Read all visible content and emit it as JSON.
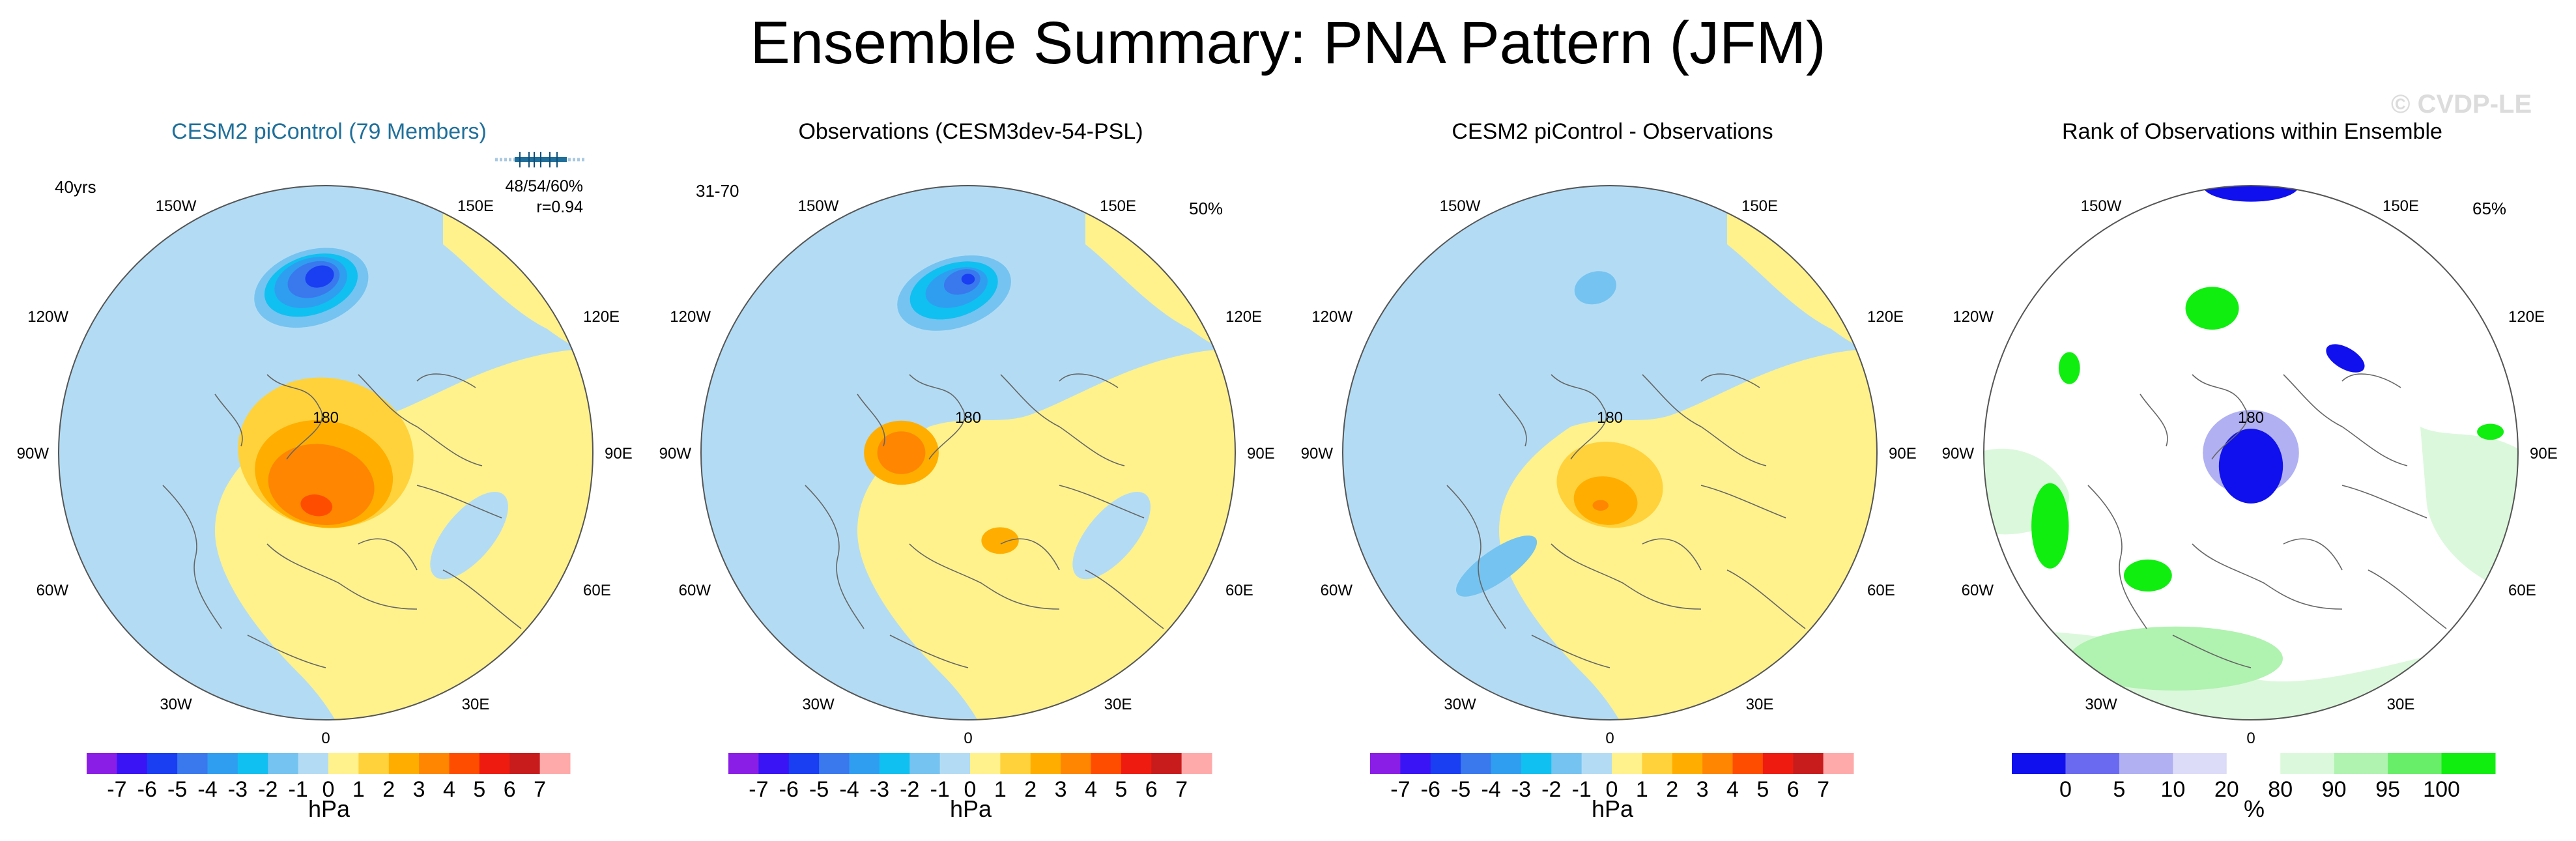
{
  "title": "Ensemble Summary: PNA Pattern (JFM)",
  "watermark": "© CVDP-LE",
  "chart_data": [
    {
      "type": "heatmap",
      "title": "CESM2 piControl (79 Members)",
      "projection": "north-polar-stereographic",
      "left_annotation": "40yrs",
      "stats_line1": "48/54/60%",
      "stats_line2": "r=0.94",
      "right_annotation": "",
      "units": "hPa",
      "fields": [
        {
          "kind": "ellipse",
          "lon": 175,
          "colat": 0.62,
          "r1": 0.27,
          "r2": 0.17,
          "rot": -18,
          "value": -1
        },
        {
          "kind": "ellipse",
          "lon": 175,
          "colat": 0.62,
          "r1": 0.22,
          "r2": 0.14,
          "rot": -18,
          "value": -2
        },
        {
          "kind": "ellipse",
          "lon": 175,
          "colat": 0.63,
          "r1": 0.18,
          "r2": 0.11,
          "rot": -18,
          "value": -3
        },
        {
          "kind": "ellipse",
          "lon": 175,
          "colat": 0.64,
          "r1": 0.14,
          "r2": 0.09,
          "rot": -18,
          "value": -4
        },
        {
          "kind": "ellipse",
          "lon": 176,
          "colat": 0.65,
          "r1": 0.1,
          "r2": 0.065,
          "rot": -18,
          "value": -5
        },
        {
          "kind": "ellipse",
          "lon": 178,
          "colat": 0.66,
          "r1": 0.055,
          "r2": 0.04,
          "rot": -18,
          "value": -6
        },
        {
          "kind": "ellipse",
          "lon": 0,
          "colat": 0.0,
          "r1": 0.33,
          "r2": 0.28,
          "rot": 10,
          "value": 1
        },
        {
          "kind": "ellipse",
          "lon": 5,
          "colat": 0.08,
          "r1": 0.26,
          "r2": 0.2,
          "rot": 10,
          "value": 2
        },
        {
          "kind": "ellipse",
          "lon": 8,
          "colat": 0.12,
          "r1": 0.2,
          "r2": 0.15,
          "rot": 10,
          "value": 3
        },
        {
          "kind": "ellipse",
          "lon": 10,
          "colat": 0.2,
          "r1": 0.06,
          "r2": 0.04,
          "rot": 10,
          "value": 4
        },
        {
          "kind": "ellipse",
          "lon": 50,
          "colat": 0.78,
          "r1": 0.2,
          "r2": 0.09,
          "rot": 30,
          "value": -1
        },
        {
          "kind": "ellipse",
          "lon": 300,
          "colat": 0.62,
          "r1": 0.2,
          "r2": 0.09,
          "rot": -50,
          "value": -1
        }
      ]
    },
    {
      "type": "heatmap",
      "title": "Observations (CESM3dev-54-PSL)",
      "projection": "north-polar-stereographic",
      "left_annotation": "31-70",
      "right_annotation": "50%",
      "units": "hPa",
      "fields": [
        {
          "kind": "ellipse",
          "lon": 175,
          "colat": 0.6,
          "r1": 0.27,
          "r2": 0.17,
          "rot": -18,
          "value": -1
        },
        {
          "kind": "ellipse",
          "lon": 175,
          "colat": 0.6,
          "r1": 0.22,
          "r2": 0.13,
          "rot": -18,
          "value": -2
        },
        {
          "kind": "ellipse",
          "lon": 175,
          "colat": 0.61,
          "r1": 0.17,
          "r2": 0.1,
          "rot": -18,
          "value": -3
        },
        {
          "kind": "ellipse",
          "lon": 176,
          "colat": 0.62,
          "r1": 0.12,
          "r2": 0.07,
          "rot": -18,
          "value": -4
        },
        {
          "kind": "ellipse",
          "lon": 178,
          "colat": 0.64,
          "r1": 0.07,
          "r2": 0.045,
          "rot": -18,
          "value": -5
        },
        {
          "kind": "ellipse",
          "lon": 180,
          "colat": 0.65,
          "r1": 0.025,
          "r2": 0.02,
          "rot": 0,
          "value": -6
        },
        {
          "kind": "ellipse",
          "lon": 90,
          "colat": 0.25,
          "r1": 0.14,
          "r2": 0.12,
          "rot": 0,
          "value": 2
        },
        {
          "kind": "ellipse",
          "lon": 90,
          "colat": 0.25,
          "r1": 0.09,
          "r2": 0.08,
          "rot": 0,
          "value": 3
        },
        {
          "kind": "ellipse",
          "lon": 340,
          "colat": 0.35,
          "r1": 0.07,
          "r2": 0.05,
          "rot": 0,
          "value": 2
        },
        {
          "kind": "ellipse",
          "lon": 300,
          "colat": 0.62,
          "r1": 0.2,
          "r2": 0.09,
          "rot": -50,
          "value": -1
        }
      ]
    },
    {
      "type": "heatmap",
      "title": "CESM2 piControl - Observations",
      "projection": "north-polar-stereographic",
      "left_annotation": "",
      "right_annotation": "",
      "units": "hPa",
      "fields": [
        {
          "kind": "ellipse",
          "lon": 175,
          "colat": 0.6,
          "r1": 0.18,
          "r2": 0.14,
          "rot": -18,
          "value": -1
        },
        {
          "kind": "ellipse",
          "lon": 175,
          "colat": 0.62,
          "r1": 0.08,
          "r2": 0.06,
          "rot": -18,
          "value": -2
        },
        {
          "kind": "ellipse",
          "lon": 0,
          "colat": 0.12,
          "r1": 0.2,
          "r2": 0.16,
          "rot": 10,
          "value": 1
        },
        {
          "kind": "ellipse",
          "lon": 5,
          "colat": 0.18,
          "r1": 0.12,
          "r2": 0.09,
          "rot": 10,
          "value": 2
        },
        {
          "kind": "ellipse",
          "lon": 10,
          "colat": 0.2,
          "r1": 0.03,
          "r2": 0.02,
          "rot": 0,
          "value": 3
        },
        {
          "kind": "ellipse",
          "lon": 45,
          "colat": 0.6,
          "r1": 0.18,
          "r2": 0.06,
          "rot": -35,
          "value": -2
        }
      ]
    },
    {
      "type": "heatmap",
      "title": "Rank of Observations within Ensemble",
      "projection": "north-polar-stereographic",
      "left_annotation": "",
      "right_annotation": "65%",
      "units": "%",
      "fields": [
        {
          "kind": "ellipse",
          "lon": 180,
          "colat": 1.0,
          "r1": 0.18,
          "r2": 0.06,
          "rot": 0,
          "value": 5
        },
        {
          "kind": "ellipse",
          "lon": 165,
          "colat": 0.56,
          "r1": 0.1,
          "r2": 0.08,
          "rot": 0,
          "value": 100
        },
        {
          "kind": "ellipse",
          "lon": 0,
          "colat": 0.0,
          "r1": 0.18,
          "r2": 0.16,
          "rot": 0,
          "value": 20
        },
        {
          "kind": "ellipse",
          "lon": 0,
          "colat": 0.05,
          "r1": 0.12,
          "r2": 0.14,
          "rot": 0,
          "value": 5
        },
        {
          "kind": "ellipse",
          "lon": 225,
          "colat": 0.5,
          "r1": 0.08,
          "r2": 0.04,
          "rot": 30,
          "value": 5
        },
        {
          "kind": "ellipse",
          "lon": 20,
          "colat": 0.82,
          "r1": 0.4,
          "r2": 0.12,
          "rot": 0,
          "value": 90
        },
        {
          "kind": "ellipse",
          "lon": 40,
          "colat": 0.6,
          "r1": 0.09,
          "r2": 0.06,
          "rot": 0,
          "value": 100
        },
        {
          "kind": "ellipse",
          "lon": 70,
          "colat": 0.8,
          "r1": 0.07,
          "r2": 0.16,
          "rot": 0,
          "value": 100
        },
        {
          "kind": "ellipse",
          "lon": 115,
          "colat": 0.75,
          "r1": 0.04,
          "r2": 0.06,
          "rot": 0,
          "value": 100
        },
        {
          "kind": "ellipse",
          "lon": 265,
          "colat": 0.9,
          "r1": 0.05,
          "r2": 0.03,
          "rot": 0,
          "value": 100
        }
      ]
    }
  ],
  "map_labels": {
    "top": "180",
    "bottom": "0",
    "upper_left": "150W",
    "upper_right": "150E",
    "mid_upper_left": "120W",
    "mid_upper_right": "120E",
    "left": "90W",
    "right": "90E",
    "mid_lower_left": "60W",
    "mid_lower_right": "60E",
    "lower_left": "30W",
    "lower_right": "30E"
  },
  "colorbar_hpa": {
    "levels": [
      -7,
      -6,
      -5,
      -4,
      -3,
      -2,
      -1,
      0,
      1,
      2,
      3,
      4,
      5,
      6,
      7
    ],
    "tick_labels": [
      "-7",
      "-6",
      "-5",
      "-4",
      "-3",
      "-2",
      "-1",
      "0",
      "1",
      "2",
      "3",
      "4",
      "5",
      "6",
      "7"
    ],
    "colors": [
      "#8b1ee6",
      "#3a14f5",
      "#1a3ef2",
      "#3a78ee",
      "#2f9ef0",
      "#10c0f0",
      "#75c3f0",
      "#b3dcf4",
      "#fff28c",
      "#ffd23c",
      "#ffae00",
      "#ff8600",
      "#ff4d00",
      "#ee1c10",
      "#c81c1c",
      "#ffaaaa"
    ]
  },
  "colorbar_rank": {
    "levels": [
      0,
      5,
      10,
      20,
      80,
      90,
      95,
      100
    ],
    "tick_labels": [
      "0",
      "5",
      "10",
      "20",
      "80",
      "90",
      "95",
      "100"
    ],
    "colors": [
      "#1010ee",
      "#6a6af0",
      "#b0b0f2",
      "#dcdcf8",
      "#ffffff",
      "#dcf8dc",
      "#b0f2b0",
      "#68ee68",
      "#10ee10"
    ]
  },
  "colors": {
    "background_negative_light": "#b3dcf4",
    "background_positive_light": "#fff28c",
    "title_blue": "#1f6f9a",
    "coastline": "#666666"
  }
}
